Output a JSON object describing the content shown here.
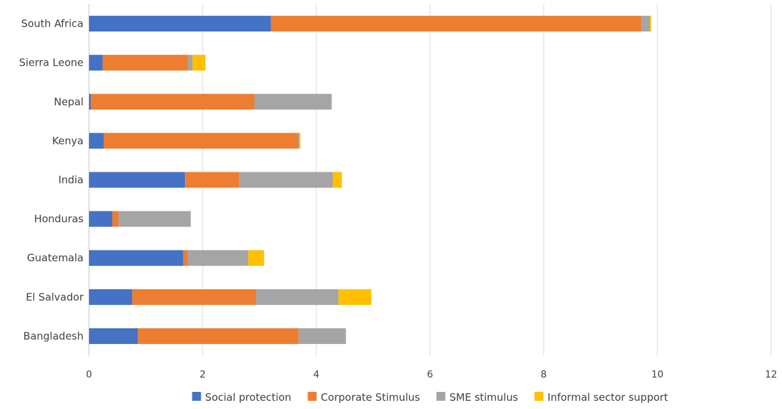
{
  "chart_data": {
    "type": "bar",
    "orientation": "horizontal",
    "stacked": true,
    "title": "",
    "xlabel": "",
    "ylabel": "",
    "categories": [
      "Bangladesh",
      "El Salvador",
      "Guatemala",
      "Honduras",
      "India",
      "Kenya",
      "Nepal",
      "Sierra Leone",
      "South Africa"
    ],
    "series": [
      {
        "name": "Social protection",
        "color": "#4472c4",
        "values": [
          0.86,
          0.76,
          1.66,
          0.41,
          1.69,
          0.26,
          0.03,
          0.24,
          3.2
        ]
      },
      {
        "name": "Corporate Stimulus",
        "color": "#ed7d31",
        "values": [
          2.83,
          2.18,
          0.08,
          0.11,
          0.95,
          3.42,
          2.88,
          1.5,
          6.52
        ]
      },
      {
        "name": "SME stimulus",
        "color": "#a5a5a5",
        "values": [
          0.83,
          1.45,
          1.06,
          1.27,
          1.65,
          0.02,
          1.36,
          0.08,
          0.15
        ]
      },
      {
        "name": "Informal sector support",
        "color": "#ffc000",
        "values": [
          0,
          0.58,
          0.28,
          0,
          0.16,
          0.02,
          0,
          0.23,
          0.02
        ]
      }
    ],
    "xlim": [
      0,
      12
    ],
    "xticks": [
      "0",
      "2",
      "4",
      "6",
      "8",
      "10",
      "12"
    ],
    "grid": "vertical",
    "legend": "bottom"
  }
}
